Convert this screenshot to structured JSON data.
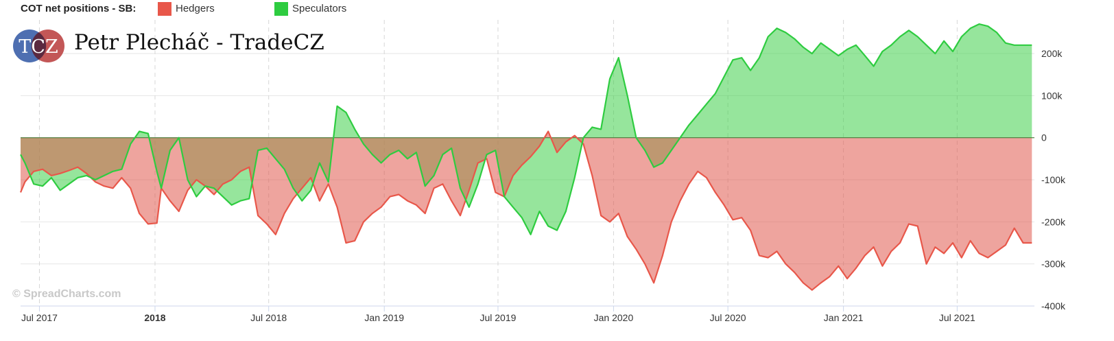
{
  "legend": {
    "title": "COT net positions - SB:",
    "items": [
      {
        "name": "Hedgers",
        "color": "#e8574a"
      },
      {
        "name": "Speculators",
        "color": "#2ecc40"
      }
    ]
  },
  "logo": {
    "initials": "TCZ",
    "text": "Petr Plecháč - TradeCZ"
  },
  "watermark": "© SpreadCharts.com",
  "chart_data": {
    "type": "area",
    "title": "COT net positions - SB:",
    "xlabel": "",
    "ylabel": "",
    "ylim": [
      -400000,
      280000
    ],
    "yticks": [
      {
        "value": 200000,
        "label": "200k"
      },
      {
        "value": 100000,
        "label": "100k"
      },
      {
        "value": 0,
        "label": "0"
      },
      {
        "value": -100000,
        "label": "-100k"
      },
      {
        "value": -200000,
        "label": "-200k"
      },
      {
        "value": -300000,
        "label": "-300k"
      },
      {
        "value": -400000,
        "label": "-400k"
      }
    ],
    "xticks": [
      {
        "date": "2017-07-01",
        "label": "Jul 2017",
        "bold": false
      },
      {
        "date": "2018-01-01",
        "label": "2018",
        "bold": true
      },
      {
        "date": "2018-07-01",
        "label": "Jul 2018",
        "bold": false
      },
      {
        "date": "2019-01-01",
        "label": "Jan 2019",
        "bold": false
      },
      {
        "date": "2019-07-01",
        "label": "Jul 2019",
        "bold": false
      },
      {
        "date": "2020-01-01",
        "label": "Jan 2020",
        "bold": false
      },
      {
        "date": "2020-07-01",
        "label": "Jul 2020",
        "bold": false
      },
      {
        "date": "2021-01-01",
        "label": "Jan 2021",
        "bold": false
      },
      {
        "date": "2021-07-01",
        "label": "Jul 2021",
        "bold": false
      }
    ],
    "xrange": [
      "2017-06-01",
      "2021-11-01"
    ],
    "grid": true,
    "series": [
      {
        "name": "Hedgers",
        "color": "#e8574a",
        "points": [
          [
            "2017-06-01",
            -130000
          ],
          [
            "2017-06-08",
            -105000
          ],
          [
            "2017-06-22",
            -80000
          ],
          [
            "2017-07-06",
            -75000
          ],
          [
            "2017-07-20",
            -90000
          ],
          [
            "2017-08-03",
            -85000
          ],
          [
            "2017-08-17",
            -78000
          ],
          [
            "2017-08-31",
            -70000
          ],
          [
            "2017-09-14",
            -85000
          ],
          [
            "2017-09-28",
            -105000
          ],
          [
            "2017-10-12",
            -115000
          ],
          [
            "2017-10-26",
            -120000
          ],
          [
            "2017-11-09",
            -95000
          ],
          [
            "2017-11-23",
            -120000
          ],
          [
            "2017-12-07",
            -180000
          ],
          [
            "2017-12-21",
            -205000
          ],
          [
            "2018-01-04",
            -203000
          ],
          [
            "2018-01-11",
            -120000
          ],
          [
            "2018-01-25",
            -150000
          ],
          [
            "2018-02-08",
            -175000
          ],
          [
            "2018-02-22",
            -125000
          ],
          [
            "2018-03-08",
            -100000
          ],
          [
            "2018-03-22",
            -115000
          ],
          [
            "2018-04-05",
            -135000
          ],
          [
            "2018-04-19",
            -110000
          ],
          [
            "2018-05-03",
            -100000
          ],
          [
            "2018-05-17",
            -80000
          ],
          [
            "2018-05-31",
            -70000
          ],
          [
            "2018-06-14",
            -185000
          ],
          [
            "2018-06-28",
            -205000
          ],
          [
            "2018-07-12",
            -230000
          ],
          [
            "2018-07-26",
            -180000
          ],
          [
            "2018-08-09",
            -145000
          ],
          [
            "2018-08-23",
            -120000
          ],
          [
            "2018-09-06",
            -95000
          ],
          [
            "2018-09-20",
            -150000
          ],
          [
            "2018-10-04",
            -110000
          ],
          [
            "2018-10-18",
            -165000
          ],
          [
            "2018-11-01",
            -250000
          ],
          [
            "2018-11-15",
            -245000
          ],
          [
            "2018-11-29",
            -200000
          ],
          [
            "2018-12-13",
            -180000
          ],
          [
            "2018-12-27",
            -165000
          ],
          [
            "2019-01-10",
            -140000
          ],
          [
            "2019-01-24",
            -135000
          ],
          [
            "2019-02-07",
            -150000
          ],
          [
            "2019-02-21",
            -160000
          ],
          [
            "2019-03-07",
            -180000
          ],
          [
            "2019-03-21",
            -120000
          ],
          [
            "2019-04-04",
            -110000
          ],
          [
            "2019-04-18",
            -150000
          ],
          [
            "2019-05-02",
            -185000
          ],
          [
            "2019-05-16",
            -125000
          ],
          [
            "2019-05-30",
            -60000
          ],
          [
            "2019-06-13",
            -50000
          ],
          [
            "2019-06-27",
            -130000
          ],
          [
            "2019-07-11",
            -140000
          ],
          [
            "2019-07-25",
            -90000
          ],
          [
            "2019-08-08",
            -65000
          ],
          [
            "2019-08-22",
            -45000
          ],
          [
            "2019-09-05",
            -20000
          ],
          [
            "2019-09-19",
            15000
          ],
          [
            "2019-10-03",
            -35000
          ],
          [
            "2019-10-17",
            -10000
          ],
          [
            "2019-10-31",
            5000
          ],
          [
            "2019-11-14",
            -15000
          ],
          [
            "2019-11-28",
            -90000
          ],
          [
            "2019-12-12",
            -185000
          ],
          [
            "2019-12-26",
            -200000
          ],
          [
            "2020-01-09",
            -180000
          ],
          [
            "2020-01-23",
            -235000
          ],
          [
            "2020-02-06",
            -265000
          ],
          [
            "2020-02-20",
            -300000
          ],
          [
            "2020-03-05",
            -345000
          ],
          [
            "2020-03-19",
            -280000
          ],
          [
            "2020-04-02",
            -200000
          ],
          [
            "2020-04-16",
            -150000
          ],
          [
            "2020-04-30",
            -110000
          ],
          [
            "2020-05-14",
            -80000
          ],
          [
            "2020-05-28",
            -95000
          ],
          [
            "2020-06-11",
            -130000
          ],
          [
            "2020-06-25",
            -160000
          ],
          [
            "2020-07-09",
            -195000
          ],
          [
            "2020-07-23",
            -190000
          ],
          [
            "2020-08-06",
            -220000
          ],
          [
            "2020-08-20",
            -280000
          ],
          [
            "2020-09-03",
            -285000
          ],
          [
            "2020-09-17",
            -270000
          ],
          [
            "2020-10-01",
            -300000
          ],
          [
            "2020-10-15",
            -320000
          ],
          [
            "2020-10-29",
            -345000
          ],
          [
            "2020-11-12",
            -362000
          ],
          [
            "2020-11-26",
            -345000
          ],
          [
            "2020-12-10",
            -330000
          ],
          [
            "2020-12-24",
            -305000
          ],
          [
            "2021-01-07",
            -335000
          ],
          [
            "2021-01-21",
            -310000
          ],
          [
            "2021-02-04",
            -280000
          ],
          [
            "2021-02-18",
            -260000
          ],
          [
            "2021-03-04",
            -305000
          ],
          [
            "2021-03-18",
            -270000
          ],
          [
            "2021-04-01",
            -250000
          ],
          [
            "2021-04-15",
            -205000
          ],
          [
            "2021-04-29",
            -210000
          ],
          [
            "2021-05-13",
            -300000
          ],
          [
            "2021-05-27",
            -260000
          ],
          [
            "2021-06-10",
            -275000
          ],
          [
            "2021-06-24",
            -250000
          ],
          [
            "2021-07-08",
            -285000
          ],
          [
            "2021-07-22",
            -245000
          ],
          [
            "2021-08-05",
            -275000
          ],
          [
            "2021-08-19",
            -285000
          ],
          [
            "2021-09-02",
            -270000
          ],
          [
            "2021-09-16",
            -255000
          ],
          [
            "2021-09-30",
            -215000
          ],
          [
            "2021-10-14",
            -250000
          ],
          [
            "2021-10-28",
            -250000
          ]
        ]
      },
      {
        "name": "Speculators",
        "color": "#2ecc40",
        "points": [
          [
            "2017-06-01",
            -40000
          ],
          [
            "2017-06-08",
            -60000
          ],
          [
            "2017-06-22",
            -110000
          ],
          [
            "2017-07-06",
            -115000
          ],
          [
            "2017-07-20",
            -95000
          ],
          [
            "2017-08-03",
            -125000
          ],
          [
            "2017-08-17",
            -110000
          ],
          [
            "2017-08-31",
            -95000
          ],
          [
            "2017-09-14",
            -90000
          ],
          [
            "2017-09-28",
            -100000
          ],
          [
            "2017-10-12",
            -90000
          ],
          [
            "2017-10-26",
            -80000
          ],
          [
            "2017-11-09",
            -75000
          ],
          [
            "2017-11-23",
            -15000
          ],
          [
            "2017-12-07",
            15000
          ],
          [
            "2017-12-21",
            10000
          ],
          [
            "2018-01-04",
            -80000
          ],
          [
            "2018-01-11",
            -120000
          ],
          [
            "2018-01-25",
            -30000
          ],
          [
            "2018-02-08",
            0
          ],
          [
            "2018-02-22",
            -100000
          ],
          [
            "2018-03-08",
            -140000
          ],
          [
            "2018-03-22",
            -115000
          ],
          [
            "2018-04-05",
            -120000
          ],
          [
            "2018-04-19",
            -140000
          ],
          [
            "2018-05-03",
            -160000
          ],
          [
            "2018-05-17",
            -150000
          ],
          [
            "2018-05-31",
            -145000
          ],
          [
            "2018-06-14",
            -30000
          ],
          [
            "2018-06-28",
            -25000
          ],
          [
            "2018-07-12",
            -50000
          ],
          [
            "2018-07-26",
            -75000
          ],
          [
            "2018-08-09",
            -120000
          ],
          [
            "2018-08-23",
            -150000
          ],
          [
            "2018-09-06",
            -125000
          ],
          [
            "2018-09-20",
            -60000
          ],
          [
            "2018-10-04",
            -105000
          ],
          [
            "2018-10-18",
            75000
          ],
          [
            "2018-11-01",
            60000
          ],
          [
            "2018-11-15",
            20000
          ],
          [
            "2018-11-29",
            -15000
          ],
          [
            "2018-12-13",
            -40000
          ],
          [
            "2018-12-27",
            -60000
          ],
          [
            "2019-01-10",
            -40000
          ],
          [
            "2019-01-24",
            -30000
          ],
          [
            "2019-02-07",
            -50000
          ],
          [
            "2019-02-21",
            -35000
          ],
          [
            "2019-03-07",
            -115000
          ],
          [
            "2019-03-21",
            -90000
          ],
          [
            "2019-04-04",
            -40000
          ],
          [
            "2019-04-18",
            -25000
          ],
          [
            "2019-05-02",
            -120000
          ],
          [
            "2019-05-16",
            -165000
          ],
          [
            "2019-05-30",
            -110000
          ],
          [
            "2019-06-13",
            -40000
          ],
          [
            "2019-06-27",
            -30000
          ],
          [
            "2019-07-11",
            -140000
          ],
          [
            "2019-07-25",
            -165000
          ],
          [
            "2019-08-08",
            -190000
          ],
          [
            "2019-08-22",
            -230000
          ],
          [
            "2019-09-05",
            -175000
          ],
          [
            "2019-09-19",
            -210000
          ],
          [
            "2019-10-03",
            -220000
          ],
          [
            "2019-10-17",
            -175000
          ],
          [
            "2019-10-31",
            -95000
          ],
          [
            "2019-11-14",
            0
          ],
          [
            "2019-11-28",
            25000
          ],
          [
            "2019-12-12",
            20000
          ],
          [
            "2019-12-26",
            140000
          ],
          [
            "2020-01-09",
            190000
          ],
          [
            "2020-01-23",
            100000
          ],
          [
            "2020-02-06",
            0
          ],
          [
            "2020-02-20",
            -30000
          ],
          [
            "2020-03-05",
            -70000
          ],
          [
            "2020-03-19",
            -60000
          ],
          [
            "2020-04-02",
            -30000
          ],
          [
            "2020-04-16",
            0
          ],
          [
            "2020-04-30",
            30000
          ],
          [
            "2020-05-14",
            55000
          ],
          [
            "2020-05-28",
            80000
          ],
          [
            "2020-06-11",
            105000
          ],
          [
            "2020-06-25",
            145000
          ],
          [
            "2020-07-09",
            185000
          ],
          [
            "2020-07-23",
            190000
          ],
          [
            "2020-08-06",
            160000
          ],
          [
            "2020-08-20",
            190000
          ],
          [
            "2020-09-03",
            240000
          ],
          [
            "2020-09-17",
            260000
          ],
          [
            "2020-10-01",
            250000
          ],
          [
            "2020-10-15",
            235000
          ],
          [
            "2020-10-29",
            215000
          ],
          [
            "2020-11-12",
            200000
          ],
          [
            "2020-11-26",
            225000
          ],
          [
            "2020-12-10",
            210000
          ],
          [
            "2020-12-24",
            195000
          ],
          [
            "2021-01-07",
            210000
          ],
          [
            "2021-01-21",
            220000
          ],
          [
            "2021-02-04",
            195000
          ],
          [
            "2021-02-18",
            170000
          ],
          [
            "2021-03-04",
            205000
          ],
          [
            "2021-03-18",
            220000
          ],
          [
            "2021-04-01",
            240000
          ],
          [
            "2021-04-15",
            255000
          ],
          [
            "2021-04-29",
            240000
          ],
          [
            "2021-05-13",
            220000
          ],
          [
            "2021-05-27",
            200000
          ],
          [
            "2021-06-10",
            230000
          ],
          [
            "2021-06-24",
            205000
          ],
          [
            "2021-07-08",
            240000
          ],
          [
            "2021-07-22",
            260000
          ],
          [
            "2021-08-05",
            270000
          ],
          [
            "2021-08-19",
            265000
          ],
          [
            "2021-09-02",
            250000
          ],
          [
            "2021-09-16",
            225000
          ],
          [
            "2021-09-30",
            220000
          ],
          [
            "2021-10-14",
            220000
          ],
          [
            "2021-10-28",
            220000
          ]
        ]
      }
    ]
  }
}
